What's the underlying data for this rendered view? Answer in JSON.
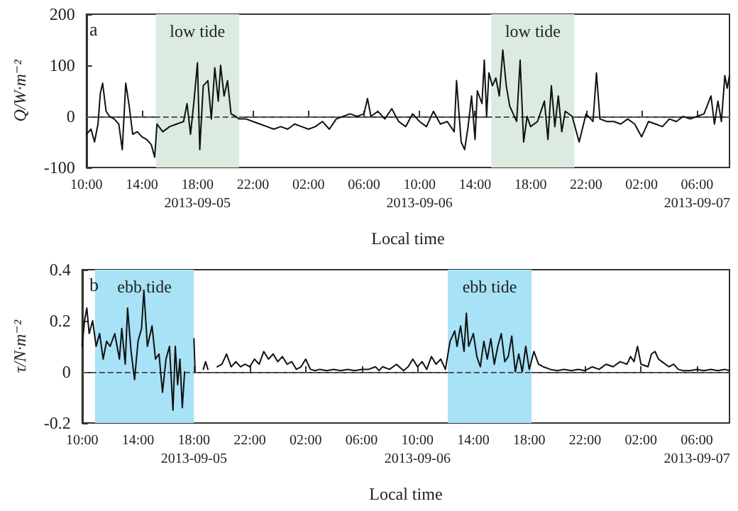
{
  "chart_data": [
    {
      "type": "line",
      "ylabel": "Q/W·m⁻²",
      "xlabel": "Local time",
      "annotations": [
        "a"
      ],
      "grid": false,
      "marker": "none",
      "line_style": "solid",
      "xlim": [
        "2013-09-05T10:00",
        "2013-09-07T08:20"
      ],
      "xticks": [
        {
          "value": "2013-09-05T10:00",
          "label": "10:00"
        },
        {
          "value": "2013-09-05T14:00",
          "label": "14:00"
        },
        {
          "value": "2013-09-05T18:00",
          "label": "18:00\n2013-09-05"
        },
        {
          "value": "2013-09-05T22:00",
          "label": "22:00"
        },
        {
          "value": "2013-09-06T02:00",
          "label": "02:00"
        },
        {
          "value": "2013-09-06T06:00",
          "label": "06:00"
        },
        {
          "value": "2013-09-06T10:00",
          "label": "10:00\n2013-09-06"
        },
        {
          "value": "2013-09-06T14:00",
          "label": "14:00"
        },
        {
          "value": "2013-09-06T18:00",
          "label": "18:00"
        },
        {
          "value": "2013-09-06T22:00",
          "label": "22:00"
        },
        {
          "value": "2013-09-07T02:00",
          "label": "02:00"
        },
        {
          "value": "2013-09-07T06:00",
          "label": "06:00\n2013-09-07"
        }
      ],
      "ylim": [
        -100,
        200
      ],
      "yticks": [
        -100,
        0,
        100,
        200
      ],
      "bands": [
        {
          "axis": "x",
          "from": "2013-09-05T15:00",
          "to": "2013-09-05T21:00",
          "label": "low tide",
          "color": "#dcebe0"
        },
        {
          "axis": "x",
          "from": "2013-09-06T15:10",
          "to": "2013-09-06T21:10",
          "label": "low tide",
          "color": "#dcebe0"
        }
      ],
      "ref_lines": [
        {
          "axis": "y",
          "value": 0,
          "color": "#555555",
          "line_style": "dashed"
        }
      ],
      "series": [
        {
          "color": "#111111",
          "x": [
            "2013-09-05T10:00",
            "2013-09-05T10:20",
            "2013-09-05T10:35",
            "2013-09-05T10:50",
            "2013-09-05T11:00",
            "2013-09-05T11:10",
            "2013-09-05T11:25",
            "2013-09-05T11:40",
            "2013-09-05T12:00",
            "2013-09-05T12:20",
            "2013-09-05T12:35",
            "2013-09-05T12:50",
            "2013-09-05T13:05",
            "2013-09-05T13:20",
            "2013-09-05T13:40",
            "2013-09-05T14:00",
            "2013-09-05T14:20",
            "2013-09-05T14:40",
            "2013-09-05T14:55",
            "2013-09-05T15:05",
            "2013-09-05T15:30",
            "2013-09-05T16:00",
            "2013-09-05T16:30",
            "2013-09-05T17:00",
            "2013-09-05T17:15",
            "2013-09-05T17:30",
            "2013-09-05T17:45",
            "2013-09-05T18:00",
            "2013-09-05T18:10",
            "2013-09-05T18:25",
            "2013-09-05T18:45",
            "2013-09-05T19:00",
            "2013-09-05T19:15",
            "2013-09-05T19:30",
            "2013-09-05T19:40",
            "2013-09-05T19:55",
            "2013-09-05T20:10",
            "2013-09-05T20:25",
            "2013-09-05T20:45",
            "2013-09-05T21:00",
            "2013-09-05T21:30",
            "2013-09-05T22:00",
            "2013-09-05T22:30",
            "2013-09-05T23:00",
            "2013-09-05T23:30",
            "2013-09-06T00:00",
            "2013-09-06T00:30",
            "2013-09-06T01:00",
            "2013-09-06T01:30",
            "2013-09-06T02:00",
            "2013-09-06T02:30",
            "2013-09-06T03:00",
            "2013-09-06T03:30",
            "2013-09-06T04:00",
            "2013-09-06T04:30",
            "2013-09-06T05:00",
            "2013-09-06T05:30",
            "2013-09-06T06:00",
            "2013-09-06T06:15",
            "2013-09-06T06:30",
            "2013-09-06T07:00",
            "2013-09-06T07:30",
            "2013-09-06T08:00",
            "2013-09-06T08:30",
            "2013-09-06T09:00",
            "2013-09-06T09:30",
            "2013-09-06T10:00",
            "2013-09-06T10:30",
            "2013-09-06T11:00",
            "2013-09-06T11:30",
            "2013-09-06T12:00",
            "2013-09-06T12:30",
            "2013-09-06T12:40",
            "2013-09-06T13:00",
            "2013-09-06T13:15",
            "2013-09-06T13:30",
            "2013-09-06T13:45",
            "2013-09-06T14:00",
            "2013-09-06T14:10",
            "2013-09-06T14:30",
            "2013-09-06T14:40",
            "2013-09-06T14:50",
            "2013-09-06T15:00",
            "2013-09-06T15:15",
            "2013-09-06T15:30",
            "2013-09-06T15:45",
            "2013-09-06T16:00",
            "2013-09-06T16:15",
            "2013-09-06T16:30",
            "2013-09-06T17:00",
            "2013-09-06T17:15",
            "2013-09-06T17:30",
            "2013-09-06T17:45",
            "2013-09-06T18:00",
            "2013-09-06T18:30",
            "2013-09-06T19:00",
            "2013-09-06T19:15",
            "2013-09-06T19:30",
            "2013-09-06T19:45",
            "2013-09-06T20:00",
            "2013-09-06T20:15",
            "2013-09-06T20:30",
            "2013-09-06T21:00",
            "2013-09-06T21:30",
            "2013-09-06T22:00",
            "2013-09-06T22:30",
            "2013-09-06T22:45",
            "2013-09-06T23:00",
            "2013-09-06T23:30",
            "2013-09-07T00:00",
            "2013-09-07T00:30",
            "2013-09-07T01:00",
            "2013-09-07T01:30",
            "2013-09-07T02:00",
            "2013-09-07T02:30",
            "2013-09-07T03:00",
            "2013-09-07T03:30",
            "2013-09-07T04:00",
            "2013-09-07T04:30",
            "2013-09-07T05:00",
            "2013-09-07T05:30",
            "2013-09-07T06:00",
            "2013-09-07T06:30",
            "2013-09-07T07:00",
            "2013-09-07T07:15",
            "2013-09-07T07:30",
            "2013-09-07T07:45",
            "2013-09-07T08:00",
            "2013-09-07T08:10",
            "2013-09-07T08:20"
          ],
          "values": [
            -35,
            -25,
            -50,
            -15,
            45,
            65,
            10,
            0,
            -5,
            -15,
            -65,
            65,
            20,
            -35,
            -30,
            -40,
            -45,
            -55,
            -80,
            -15,
            -30,
            -20,
            -15,
            -10,
            25,
            -35,
            30,
            105,
            -65,
            60,
            70,
            -5,
            95,
            30,
            100,
            40,
            70,
            5,
            0,
            -5,
            -5,
            -10,
            -15,
            -20,
            -25,
            -20,
            -25,
            -15,
            -20,
            -25,
            -20,
            -10,
            -25,
            -5,
            0,
            5,
            0,
            5,
            35,
            0,
            10,
            -5,
            15,
            -10,
            -20,
            5,
            -10,
            -20,
            10,
            -15,
            -10,
            -30,
            70,
            -50,
            -65,
            -20,
            40,
            -45,
            50,
            25,
            110,
            0,
            85,
            60,
            75,
            40,
            130,
            60,
            20,
            -10,
            110,
            -50,
            0,
            -20,
            -10,
            30,
            -45,
            60,
            -20,
            40,
            -30,
            10,
            0,
            -50,
            5,
            -10,
            85,
            -5,
            -10,
            -10,
            -15,
            -5,
            -15,
            -40,
            -10,
            -15,
            -20,
            -5,
            -10,
            0,
            -5,
            0,
            5,
            40,
            -15,
            30,
            -10,
            80,
            55,
            80
          ]
        }
      ]
    },
    {
      "type": "line",
      "ylabel": "τ/N·m⁻²",
      "xlabel": "Local time",
      "annotations": [
        "b"
      ],
      "grid": false,
      "marker": "none",
      "line_style": "solid",
      "xlim": [
        "2013-09-05T10:00",
        "2013-09-07T08:20"
      ],
      "xticks": [
        {
          "value": "2013-09-05T10:00",
          "label": "10:00"
        },
        {
          "value": "2013-09-05T14:00",
          "label": "14:00"
        },
        {
          "value": "2013-09-05T18:00",
          "label": "18:00\n2013-09-05"
        },
        {
          "value": "2013-09-05T22:00",
          "label": "22:00"
        },
        {
          "value": "2013-09-06T02:00",
          "label": "02:00"
        },
        {
          "value": "2013-09-06T06:00",
          "label": "06:00"
        },
        {
          "value": "2013-09-06T10:00",
          "label": "10:00\n2013-09-06"
        },
        {
          "value": "2013-09-06T14:00",
          "label": "14:00"
        },
        {
          "value": "2013-09-06T18:00",
          "label": "18:00"
        },
        {
          "value": "2013-09-06T22:00",
          "label": "22:00"
        },
        {
          "value": "2013-09-07T02:00",
          "label": "02:00"
        },
        {
          "value": "2013-09-07T06:00",
          "label": "06:00\n2013-09-07"
        }
      ],
      "ylim": [
        -0.2,
        0.4
      ],
      "yticks": [
        -0.2,
        0,
        0.2,
        0.4
      ],
      "bands": [
        {
          "axis": "x",
          "from": "2013-09-05T10:55",
          "to": "2013-09-05T18:00",
          "label": "ebb tide",
          "color": "#a8e2f6"
        },
        {
          "axis": "x",
          "from": "2013-09-06T12:10",
          "to": "2013-09-06T18:10",
          "label": "ebb tide",
          "color": "#a8e2f6"
        }
      ],
      "ref_lines": [
        {
          "axis": "y",
          "value": 0,
          "color": "#555555",
          "line_style": "dashed"
        }
      ],
      "series": [
        {
          "color": "#111111",
          "x": [
            "2013-09-05T10:00",
            "2013-09-05T10:10",
            "2013-09-05T10:20",
            "2013-09-05T10:30",
            "2013-09-05T10:45",
            "2013-09-05T11:00",
            "2013-09-05T11:15",
            "2013-09-05T11:30",
            "2013-09-05T11:45",
            "2013-09-05T12:00",
            "2013-09-05T12:20",
            "2013-09-05T12:40",
            "2013-09-05T12:50",
            "2013-09-05T13:05",
            "2013-09-05T13:15",
            "2013-09-05T13:30",
            "2013-09-05T13:45",
            "2013-09-05T14:00",
            "2013-09-05T14:15",
            "2013-09-05T14:25",
            "2013-09-05T14:40",
            "2013-09-05T15:00",
            "2013-09-05T15:15",
            "2013-09-05T15:30",
            "2013-09-05T15:45",
            "2013-09-05T16:00",
            "2013-09-05T16:15",
            "2013-09-05T16:30",
            "2013-09-05T16:40",
            "2013-09-05T16:50",
            "2013-09-05T17:00",
            "2013-09-05T17:10",
            "2013-09-05T17:20",
            "2013-09-05T17:40",
            "2013-09-05T18:00",
            "2013-09-05T18:05",
            "2013-09-05T18:25",
            "2013-09-05T18:40",
            "2013-09-05T18:50",
            "2013-09-05T19:00",
            "2013-09-05T19:20",
            "2013-09-05T19:40",
            "2013-09-05T20:00",
            "2013-09-05T20:20",
            "2013-09-05T20:40",
            "2013-09-05T21:00",
            "2013-09-05T21:20",
            "2013-09-05T21:40",
            "2013-09-05T22:00",
            "2013-09-05T22:20",
            "2013-09-05T22:40",
            "2013-09-05T23:00",
            "2013-09-05T23:20",
            "2013-09-05T23:40",
            "2013-09-06T00:00",
            "2013-09-06T00:20",
            "2013-09-06T00:40",
            "2013-09-06T01:00",
            "2013-09-06T01:20",
            "2013-09-06T01:40",
            "2013-09-06T02:00",
            "2013-09-06T02:20",
            "2013-09-06T02:40",
            "2013-09-06T03:00",
            "2013-09-06T03:30",
            "2013-09-06T04:00",
            "2013-09-06T04:30",
            "2013-09-06T05:00",
            "2013-09-06T05:30",
            "2013-09-06T06:00",
            "2013-09-06T06:30",
            "2013-09-06T07:00",
            "2013-09-06T07:15",
            "2013-09-06T07:30",
            "2013-09-06T08:00",
            "2013-09-06T08:30",
            "2013-09-06T09:00",
            "2013-09-06T09:20",
            "2013-09-06T09:40",
            "2013-09-06T10:00",
            "2013-09-06T10:20",
            "2013-09-06T10:40",
            "2013-09-06T11:00",
            "2013-09-06T11:20",
            "2013-09-06T11:40",
            "2013-09-06T12:00",
            "2013-09-06T12:20",
            "2013-09-06T12:40",
            "2013-09-06T12:50",
            "2013-09-06T13:05",
            "2013-09-06T13:20",
            "2013-09-06T13:30",
            "2013-09-06T13:40",
            "2013-09-06T14:00",
            "2013-09-06T14:15",
            "2013-09-06T14:30",
            "2013-09-06T14:45",
            "2013-09-06T15:00",
            "2013-09-06T15:15",
            "2013-09-06T15:30",
            "2013-09-06T15:45",
            "2013-09-06T16:00",
            "2013-09-06T16:15",
            "2013-09-06T16:30",
            "2013-09-06T16:45",
            "2013-09-06T17:00",
            "2013-09-06T17:15",
            "2013-09-06T17:30",
            "2013-09-06T17:45",
            "2013-09-06T18:00",
            "2013-09-06T18:20",
            "2013-09-06T18:40",
            "2013-09-06T19:00",
            "2013-09-06T19:30",
            "2013-09-06T20:00",
            "2013-09-06T20:30",
            "2013-09-06T21:00",
            "2013-09-06T21:30",
            "2013-09-06T22:00",
            "2013-09-06T22:30",
            "2013-09-06T23:00",
            "2013-09-06T23:30",
            "2013-09-07T00:00",
            "2013-09-07T00:30",
            "2013-09-07T01:00",
            "2013-09-07T01:15",
            "2013-09-07T01:30",
            "2013-09-07T01:45",
            "2013-09-07T02:00",
            "2013-09-07T02:30",
            "2013-09-07T02:45",
            "2013-09-07T03:00",
            "2013-09-07T03:15",
            "2013-09-07T03:30",
            "2013-09-07T04:00",
            "2013-09-07T04:20",
            "2013-09-07T04:40",
            "2013-09-07T05:00",
            "2013-09-07T05:30",
            "2013-09-07T06:00",
            "2013-09-07T06:30",
            "2013-09-07T07:00",
            "2013-09-07T07:30",
            "2013-09-07T08:00",
            "2013-09-07T08:20"
          ],
          "values": [
            0.1,
            0.2,
            0.25,
            0.15,
            0.2,
            0.1,
            0.15,
            0.05,
            0.12,
            0.1,
            0.15,
            0.05,
            0.17,
            0.03,
            0.25,
            0.08,
            -0.03,
            0.12,
            0.17,
            0.32,
            0.1,
            0.18,
            0.05,
            0.07,
            -0.08,
            0.05,
            0.1,
            -0.15,
            0.1,
            -0.05,
            0.05,
            -0.14,
            0,
            null,
            0.13,
            0,
            null,
            0.01,
            0.04,
            0.01,
            null,
            0.02,
            0.03,
            0.07,
            0.02,
            0.04,
            0.02,
            0.03,
            0.02,
            0.05,
            0.03,
            0.08,
            0.05,
            0.07,
            0.04,
            0.06,
            0.03,
            0.04,
            0.01,
            0.02,
            0.05,
            0.01,
            0.005,
            0.01,
            0.005,
            0.01,
            0.005,
            0.01,
            0.005,
            0.01,
            0.01,
            0.02,
            0.005,
            0.02,
            0.01,
            0.03,
            0.005,
            0.02,
            0.05,
            0.02,
            0.04,
            0.01,
            0.06,
            0.03,
            0.05,
            0.01,
            0.12,
            0.16,
            0.1,
            0.18,
            0.08,
            0.23,
            0.1,
            0.15,
            0.06,
            0.02,
            0.12,
            0.05,
            0.13,
            0.03,
            0.1,
            0.15,
            0.04,
            0.06,
            0.14,
            0,
            0.07,
            0,
            0.1,
            0.01,
            0.08,
            0.03,
            0.02,
            0.01,
            0.005,
            0.01,
            0.005,
            0.01,
            0.005,
            0.02,
            0.01,
            0.03,
            0.02,
            0.04,
            0.03,
            0.06,
            0.04,
            0.1,
            0.03,
            0.02,
            0.07,
            0.08,
            0.05,
            0.04,
            0.02,
            0.03,
            0.01,
            0.005,
            0.005,
            0.01,
            0.005,
            0.01,
            0.005,
            0.01,
            0.005
          ]
        }
      ]
    }
  ]
}
